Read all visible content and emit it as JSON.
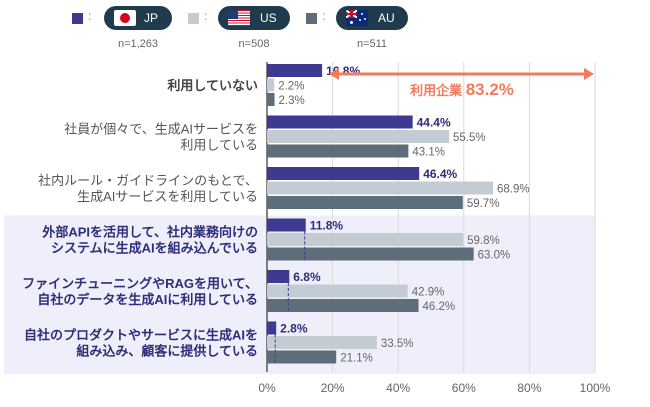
{
  "legend": [
    {
      "code": "JP",
      "n": "n=1,263",
      "color": "#3d3a8f",
      "flag": "jp-flag-icon"
    },
    {
      "code": "US",
      "n": "n=508",
      "color": "#c3cbd3",
      "flag": "us-flag-icon"
    },
    {
      "code": "AU",
      "n": "n=511",
      "color": "#5d6d7a",
      "flag": "au-flag-icon"
    }
  ],
  "annotation": {
    "label": "利用企業",
    "value": "83.2%",
    "color": "#f47a5c"
  },
  "chart_data": {
    "type": "bar",
    "orientation": "horizontal",
    "categories": [
      [
        "利用していない"
      ],
      [
        "社員が個々で、生成AIサービスを",
        "利用している"
      ],
      [
        "社内ルール・ガイドラインのもとで、",
        "生成AIサービスを利用している"
      ],
      [
        "外部APIを活用して、社内業務向けの",
        "システムに生成AIを組み込んでいる"
      ],
      [
        "ファインチューニングやRAGを用いて、",
        "自社のデータを生成AIに利用している"
      ],
      [
        "自社のプロダクトやサービスに生成AIを",
        "組み込み、顧客に提供している"
      ]
    ],
    "highlighted_categories": [
      3,
      4,
      5
    ],
    "series": [
      {
        "name": "JP",
        "color": "#3d3a8f",
        "values": [
          16.8,
          44.4,
          46.4,
          11.8,
          6.8,
          2.8
        ],
        "labels": [
          "16.8%",
          "44.4%",
          "46.4%",
          "11.8%",
          "6.8%",
          "2.8%"
        ]
      },
      {
        "name": "US",
        "color": "#c3cbd3",
        "values": [
          2.2,
          55.5,
          68.9,
          59.8,
          42.9,
          33.5
        ],
        "labels": [
          "2.2%",
          "55.5%",
          "68.9%",
          "59.8%",
          "42.9%",
          "33.5%"
        ]
      },
      {
        "name": "AU",
        "color": "#5d6d7a",
        "values": [
          2.3,
          43.1,
          59.7,
          63.0,
          46.2,
          21.1
        ],
        "labels": [
          "2.3%",
          "43.1%",
          "59.7%",
          "63.0%",
          "46.2%",
          "21.1%"
        ]
      }
    ],
    "xlim": [
      0,
      100
    ],
    "xticks": [
      0,
      20,
      40,
      60,
      80,
      100
    ],
    "xtick_labels": [
      "0%",
      "20%",
      "40%",
      "60%",
      "80%",
      "100%"
    ],
    "grid": true
  }
}
